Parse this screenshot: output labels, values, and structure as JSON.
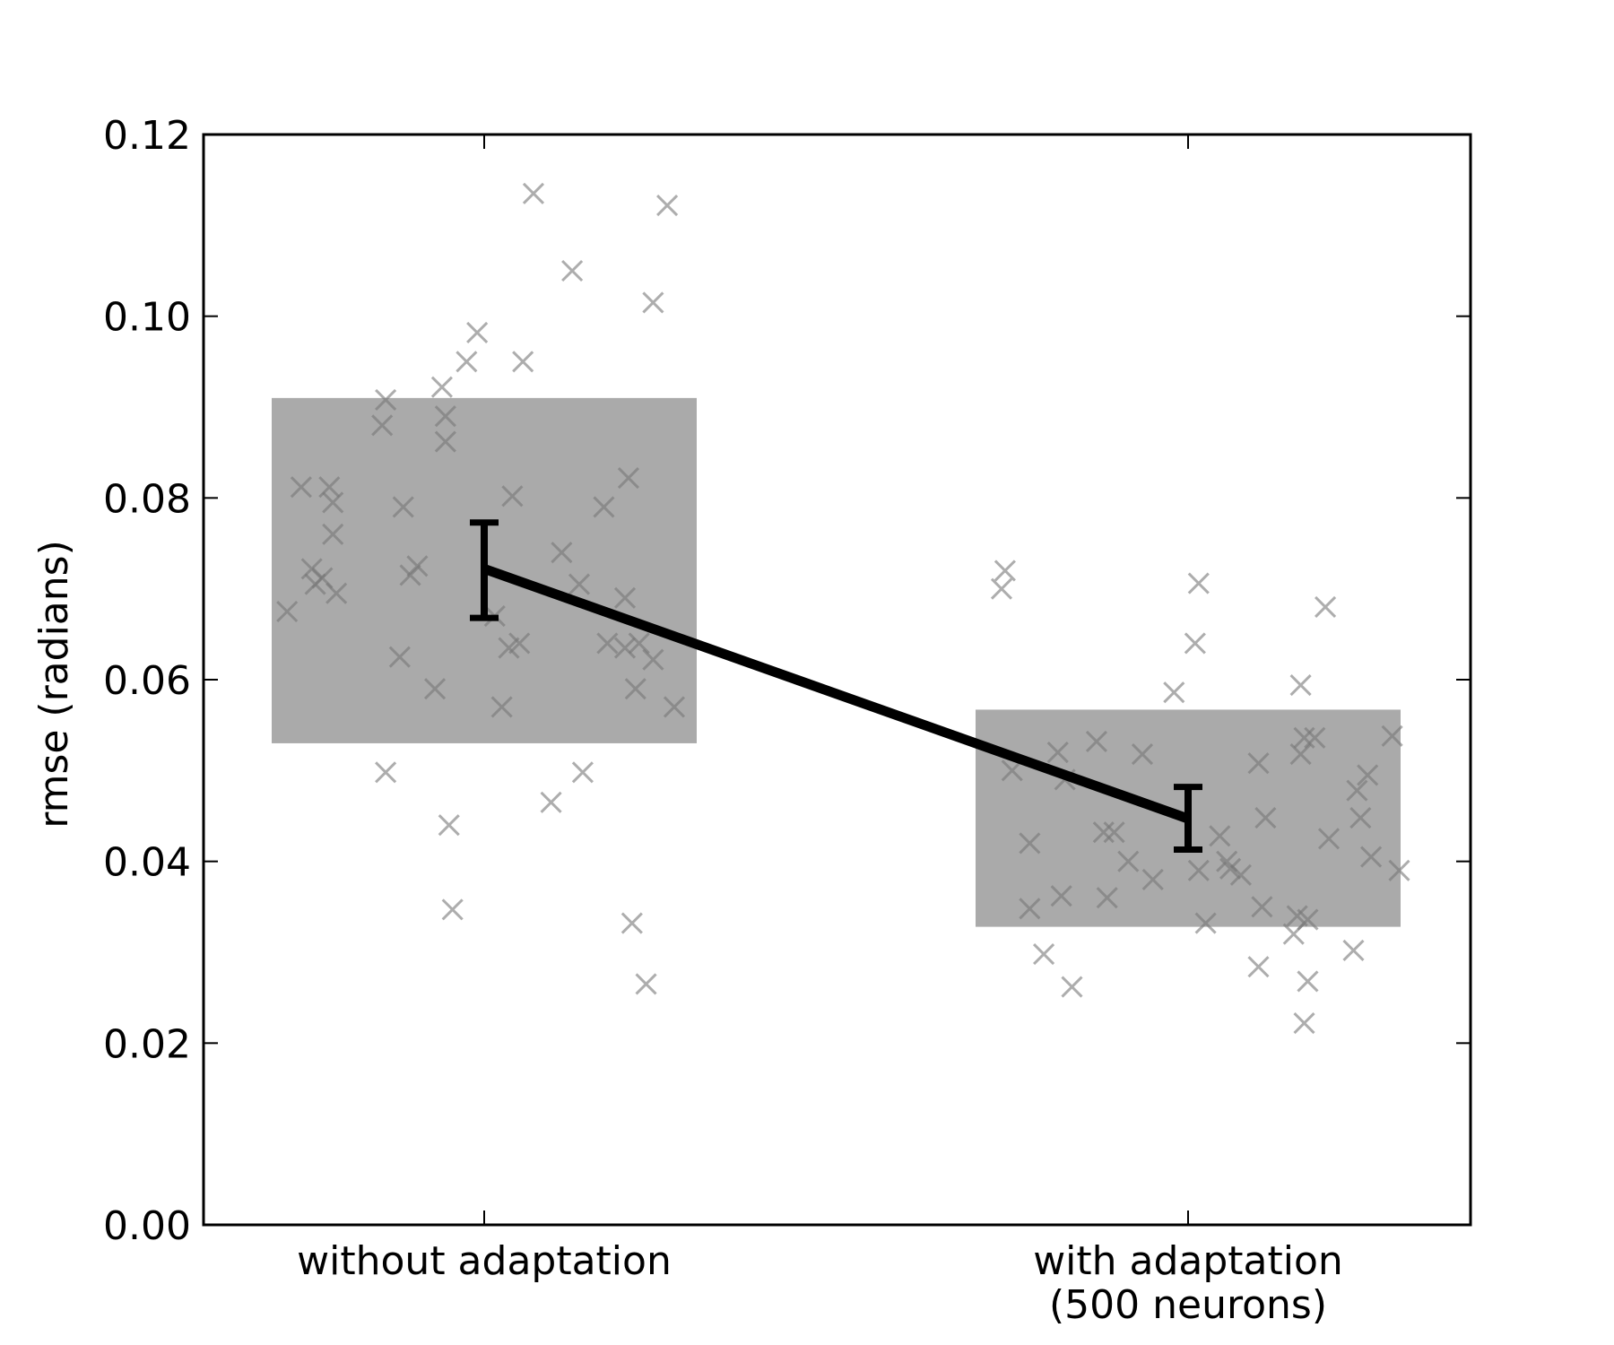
{
  "chart_data": {
    "type": "bar",
    "categories": [
      "without adaptation",
      "with adaptation\n(500 neurons)"
    ],
    "category_lines": [
      [
        "without adaptation"
      ],
      [
        "with adaptation",
        "(500 neurons)"
      ]
    ],
    "ylabel": "rmse (radians)",
    "xlabel": "",
    "ylim": [
      0,
      0.12
    ],
    "yticks": [
      0.0,
      0.02,
      0.04,
      0.06,
      0.08,
      0.1,
      0.12
    ],
    "ytick_labels": [
      "0.00",
      "0.02",
      "0.04",
      "0.06",
      "0.08",
      "0.10",
      "0.12"
    ],
    "grid": false,
    "bands": [
      {
        "category": "without adaptation",
        "low": 0.053,
        "high": 0.091
      },
      {
        "category": "with adaptation (500 neurons)",
        "low": 0.0328,
        "high": 0.0567
      }
    ],
    "mean_line": {
      "means": [
        0.0722,
        0.0447
      ],
      "error_low": [
        0.0668,
        0.0413
      ],
      "error_high": [
        0.0773,
        0.0482
      ]
    },
    "scatter": [
      {
        "category": "without adaptation",
        "points": [
          {
            "dx": -0.28,
            "y": 0.0675
          },
          {
            "dx": -0.26,
            "y": 0.0812
          },
          {
            "dx": -0.245,
            "y": 0.0722
          },
          {
            "dx": -0.24,
            "y": 0.0705
          },
          {
            "dx": -0.23,
            "y": 0.0712
          },
          {
            "dx": -0.22,
            "y": 0.0812
          },
          {
            "dx": -0.215,
            "y": 0.0795
          },
          {
            "dx": -0.215,
            "y": 0.076
          },
          {
            "dx": -0.21,
            "y": 0.0695
          },
          {
            "dx": -0.145,
            "y": 0.088
          },
          {
            "dx": -0.14,
            "y": 0.0908
          },
          {
            "dx": -0.14,
            "y": 0.0498
          },
          {
            "dx": -0.12,
            "y": 0.0625
          },
          {
            "dx": -0.115,
            "y": 0.079
          },
          {
            "dx": -0.105,
            "y": 0.0715
          },
          {
            "dx": -0.095,
            "y": 0.0725
          },
          {
            "dx": -0.07,
            "y": 0.059
          },
          {
            "dx": -0.06,
            "y": 0.0922
          },
          {
            "dx": -0.055,
            "y": 0.089
          },
          {
            "dx": -0.055,
            "y": 0.0862
          },
          {
            "dx": -0.05,
            "y": 0.044
          },
          {
            "dx": -0.045,
            "y": 0.0347
          },
          {
            "dx": -0.025,
            "y": 0.095
          },
          {
            "dx": -0.01,
            "y": 0.0982
          },
          {
            "dx": 0.015,
            "y": 0.067
          },
          {
            "dx": 0.025,
            "y": 0.057
          },
          {
            "dx": 0.035,
            "y": 0.0635
          },
          {
            "dx": 0.04,
            "y": 0.0802
          },
          {
            "dx": 0.05,
            "y": 0.064
          },
          {
            "dx": 0.055,
            "y": 0.095
          },
          {
            "dx": 0.07,
            "y": 0.1135
          },
          {
            "dx": 0.095,
            "y": 0.0465
          },
          {
            "dx": 0.11,
            "y": 0.074
          },
          {
            "dx": 0.125,
            "y": 0.105
          },
          {
            "dx": 0.135,
            "y": 0.0705
          },
          {
            "dx": 0.14,
            "y": 0.0498
          },
          {
            "dx": 0.17,
            "y": 0.079
          },
          {
            "dx": 0.175,
            "y": 0.064
          },
          {
            "dx": 0.2,
            "y": 0.069
          },
          {
            "dx": 0.2,
            "y": 0.0635
          },
          {
            "dx": 0.205,
            "y": 0.0822
          },
          {
            "dx": 0.21,
            "y": 0.0332
          },
          {
            "dx": 0.215,
            "y": 0.059
          },
          {
            "dx": 0.22,
            "y": 0.064
          },
          {
            "dx": 0.23,
            "y": 0.0265
          },
          {
            "dx": 0.24,
            "y": 0.0622
          },
          {
            "dx": 0.24,
            "y": 0.1015
          },
          {
            "dx": 0.26,
            "y": 0.1122
          },
          {
            "dx": 0.27,
            "y": 0.057
          }
        ]
      },
      {
        "category": "with adaptation (500 neurons)",
        "points": [
          {
            "dx": -0.265,
            "y": 0.07
          },
          {
            "dx": -0.26,
            "y": 0.072
          },
          {
            "dx": -0.25,
            "y": 0.05
          },
          {
            "dx": -0.225,
            "y": 0.042
          },
          {
            "dx": -0.225,
            "y": 0.0348
          },
          {
            "dx": -0.205,
            "y": 0.0298
          },
          {
            "dx": -0.185,
            "y": 0.052
          },
          {
            "dx": -0.18,
            "y": 0.0362
          },
          {
            "dx": -0.175,
            "y": 0.049
          },
          {
            "dx": -0.165,
            "y": 0.0262
          },
          {
            "dx": -0.13,
            "y": 0.0532
          },
          {
            "dx": -0.12,
            "y": 0.0432
          },
          {
            "dx": -0.115,
            "y": 0.036
          },
          {
            "dx": -0.105,
            "y": 0.0432
          },
          {
            "dx": -0.085,
            "y": 0.04
          },
          {
            "dx": -0.065,
            "y": 0.0518
          },
          {
            "dx": -0.05,
            "y": 0.038
          },
          {
            "dx": -0.02,
            "y": 0.0586
          },
          {
            "dx": 0.01,
            "y": 0.064
          },
          {
            "dx": 0.015,
            "y": 0.0706
          },
          {
            "dx": 0.015,
            "y": 0.039
          },
          {
            "dx": 0.025,
            "y": 0.0332
          },
          {
            "dx": 0.045,
            "y": 0.0428
          },
          {
            "dx": 0.055,
            "y": 0.04
          },
          {
            "dx": 0.06,
            "y": 0.0392
          },
          {
            "dx": 0.075,
            "y": 0.0385
          },
          {
            "dx": 0.1,
            "y": 0.0508
          },
          {
            "dx": 0.1,
            "y": 0.0284
          },
          {
            "dx": 0.105,
            "y": 0.035
          },
          {
            "dx": 0.11,
            "y": 0.0448
          },
          {
            "dx": 0.15,
            "y": 0.032
          },
          {
            "dx": 0.155,
            "y": 0.034
          },
          {
            "dx": 0.16,
            "y": 0.0594
          },
          {
            "dx": 0.16,
            "y": 0.0518
          },
          {
            "dx": 0.165,
            "y": 0.0536
          },
          {
            "dx": 0.165,
            "y": 0.0222
          },
          {
            "dx": 0.17,
            "y": 0.0268
          },
          {
            "dx": 0.17,
            "y": 0.0336
          },
          {
            "dx": 0.18,
            "y": 0.0536
          },
          {
            "dx": 0.195,
            "y": 0.068
          },
          {
            "dx": 0.2,
            "y": 0.0425
          },
          {
            "dx": 0.235,
            "y": 0.0302
          },
          {
            "dx": 0.24,
            "y": 0.0478
          },
          {
            "dx": 0.245,
            "y": 0.0448
          },
          {
            "dx": 0.255,
            "y": 0.0495
          },
          {
            "dx": 0.26,
            "y": 0.0405
          },
          {
            "dx": 0.29,
            "y": 0.0538
          },
          {
            "dx": 0.3,
            "y": 0.039
          }
        ]
      }
    ],
    "colors": {
      "band": "#aaaaaa",
      "marker": "#777777",
      "line": "#000000",
      "axis": "#000000"
    }
  }
}
